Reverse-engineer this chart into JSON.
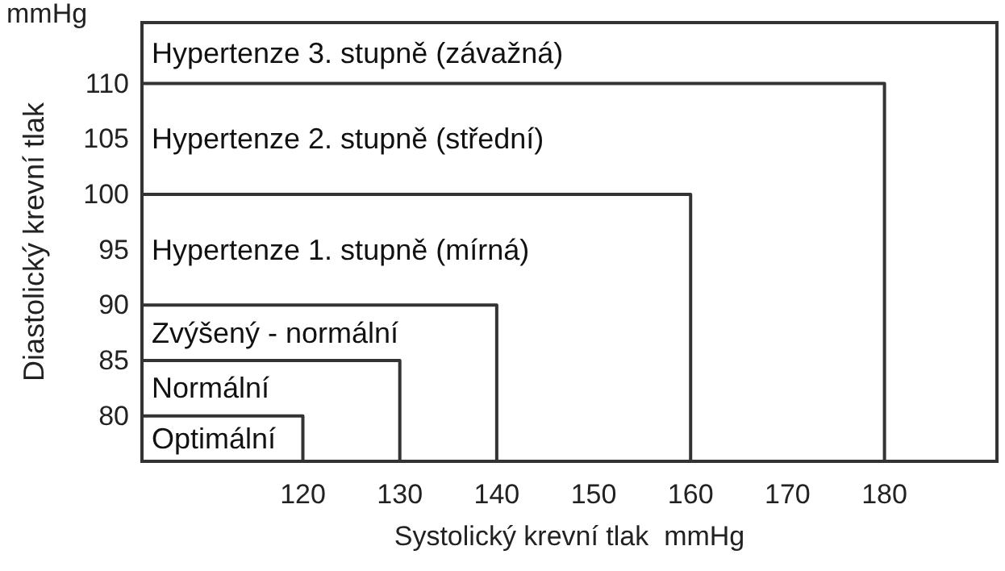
{
  "chart_data": {
    "type": "line",
    "xlabel": "Systolický krevní tlak  mmHg",
    "ylabel": "Diastolický krevní tlak",
    "xlim": [
      103.4,
      191.6
    ],
    "ylim": [
      75.9,
      115.5
    ],
    "xticks": [
      120,
      130,
      140,
      150,
      160,
      170,
      180
    ],
    "yticks": [
      80,
      85,
      90,
      95,
      100,
      105,
      110
    ],
    "grid": false,
    "legend": false,
    "marker": "none",
    "line_style": "solid",
    "series": [
      {
        "color": "#333333",
        "x": [
          103.4,
          120,
          120
        ],
        "values": [
          80,
          80,
          75.9
        ]
      },
      {
        "color": "#333333",
        "x": [
          103.4,
          130,
          130
        ],
        "values": [
          85,
          85,
          75.9
        ]
      },
      {
        "color": "#333333",
        "x": [
          103.4,
          140,
          140
        ],
        "values": [
          90,
          90,
          75.9
        ]
      },
      {
        "color": "#333333",
        "x": [
          103.4,
          160,
          160
        ],
        "values": [
          100,
          100,
          75.9
        ]
      },
      {
        "color": "#333333",
        "x": [
          103.4,
          180,
          180
        ],
        "values": [
          110,
          110,
          75.9
        ]
      }
    ],
    "annotations": [
      "mmHg",
      "Optimální",
      "Normální",
      "Zvýšený - normální",
      "Hypertenze 1. stupně (mírná)",
      "Hypertenze 2. stupně (střední)",
      "Hypertenze 3. stupně (závažná)"
    ]
  }
}
